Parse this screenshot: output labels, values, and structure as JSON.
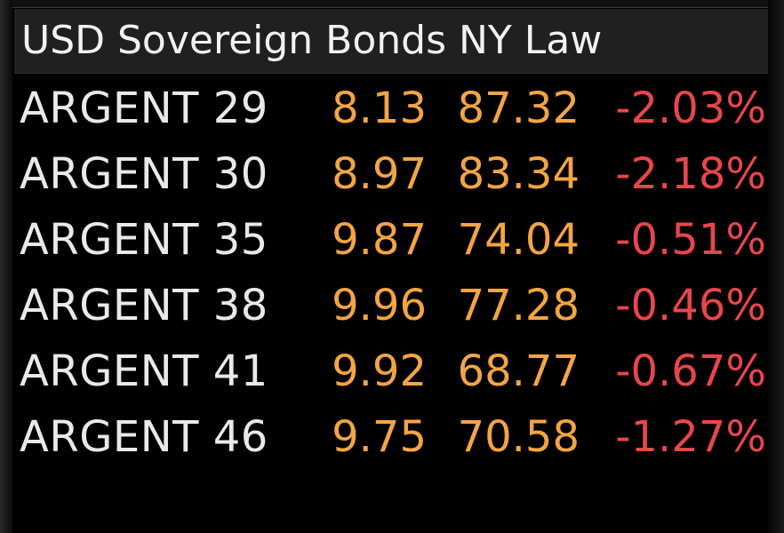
{
  "title": "USD Sovereign Bonds NY Law",
  "colors": {
    "background": "#000000",
    "header_background": "#202020",
    "title_text": "#f2f2f2",
    "name_text": "#e9e9e9",
    "value_text": "#f3a543",
    "negative_change": "#e8464c"
  },
  "rows": [
    {
      "name": "ARGENT 29",
      "yield": "8.13",
      "price": "87.32",
      "change": "-2.03%"
    },
    {
      "name": "ARGENT 30",
      "yield": "8.97",
      "price": "83.34",
      "change": "-2.18%"
    },
    {
      "name": "ARGENT 35",
      "yield": "9.87",
      "price": "74.04",
      "change": "-0.51%"
    },
    {
      "name": "ARGENT 38",
      "yield": "9.96",
      "price": "77.28",
      "change": "-0.46%"
    },
    {
      "name": "ARGENT 41",
      "yield": "9.92",
      "price": "68.77",
      "change": "-0.67%"
    },
    {
      "name": "ARGENT 46",
      "yield": "9.75",
      "price": "70.58",
      "change": "-1.27%"
    }
  ]
}
